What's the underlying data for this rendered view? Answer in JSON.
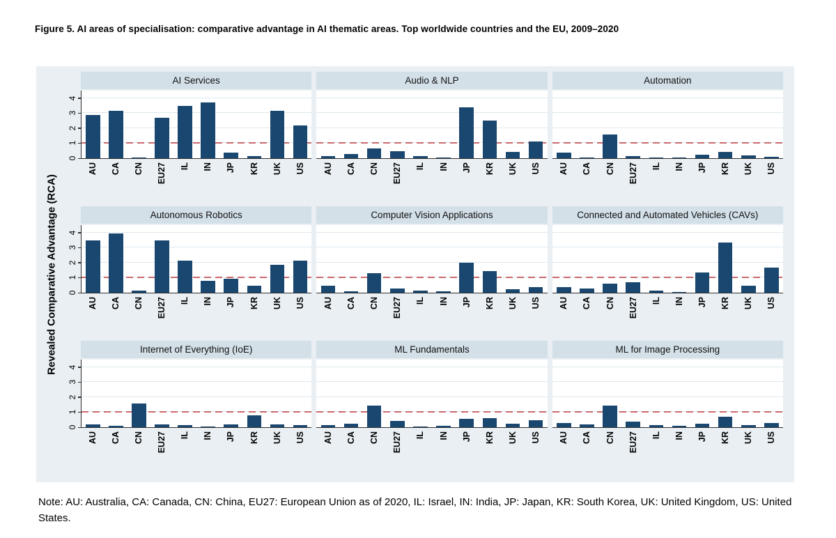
{
  "page": {
    "figure_title": "Figure 5. AI areas of specialisation: comparative advantage in AI thematic areas. Top worldwide countries and the EU, 2009–2020",
    "note": "Note: AU: Australia, CA: Canada, CN: China, EU27: European Union as of 2020, IL: Israel, IN: India, JP: Japan, KR: South Korea, UK: United Kingdom, US: United States."
  },
  "colors": {
    "bar": "#1a476f",
    "reference_line": "#c9686d",
    "figure_bg": "#e9eff3",
    "band_bg": "#d3e0e8",
    "grid_line": "#dde8ee",
    "axis": "#2e2e2e"
  },
  "chart_data": {
    "type": "bar",
    "ylabel": "Revealed Comparative Advantage (RCA)",
    "categories": [
      "AU",
      "CA",
      "CN",
      "EU27",
      "IL",
      "IN",
      "JP",
      "KR",
      "UK",
      "US"
    ],
    "yticks": [
      0,
      1,
      2,
      3,
      4
    ],
    "ylim": [
      0,
      4.5
    ],
    "reference_line_y": 1,
    "grid": true,
    "legend_position": "none",
    "panels": [
      {
        "title": "AI Services",
        "values": [
          2.9,
          3.15,
          0.05,
          2.7,
          3.5,
          3.7,
          0.35,
          0.15,
          3.15,
          2.2
        ]
      },
      {
        "title": "Audio & NLP",
        "values": [
          0.15,
          0.3,
          0.65,
          0.45,
          0.15,
          0.07,
          3.4,
          2.5,
          0.4,
          1.1
        ]
      },
      {
        "title": "Automation",
        "values": [
          0.35,
          0.05,
          1.6,
          0.15,
          0.05,
          0.04,
          0.25,
          0.4,
          0.17,
          0.08
        ]
      },
      {
        "title": "Autonomous Robotics",
        "values": [
          3.5,
          3.95,
          0.12,
          3.5,
          2.15,
          0.8,
          0.95,
          0.45,
          1.85,
          2.15
        ]
      },
      {
        "title": "Computer Vision Applications",
        "values": [
          0.45,
          0.1,
          1.3,
          0.3,
          0.12,
          0.08,
          2.0,
          1.45,
          0.25,
          0.35
        ]
      },
      {
        "title": "Connected and Automated Vehicles (CAVs)",
        "values": [
          0.35,
          0.3,
          0.6,
          0.7,
          0.12,
          0.05,
          1.35,
          3.35,
          0.45,
          1.65
        ]
      },
      {
        "title": "Internet of Everything (IoE)",
        "values": [
          0.2,
          0.1,
          1.6,
          0.2,
          0.12,
          0.03,
          0.2,
          0.8,
          0.18,
          0.15
        ]
      },
      {
        "title": "ML Fundamentals",
        "values": [
          0.15,
          0.22,
          1.45,
          0.4,
          0.07,
          0.08,
          0.55,
          0.6,
          0.25,
          0.45
        ]
      },
      {
        "title": "ML for Image Processing",
        "values": [
          0.3,
          0.2,
          1.45,
          0.35,
          0.15,
          0.1,
          0.25,
          0.7,
          0.15,
          0.3
        ]
      }
    ]
  }
}
